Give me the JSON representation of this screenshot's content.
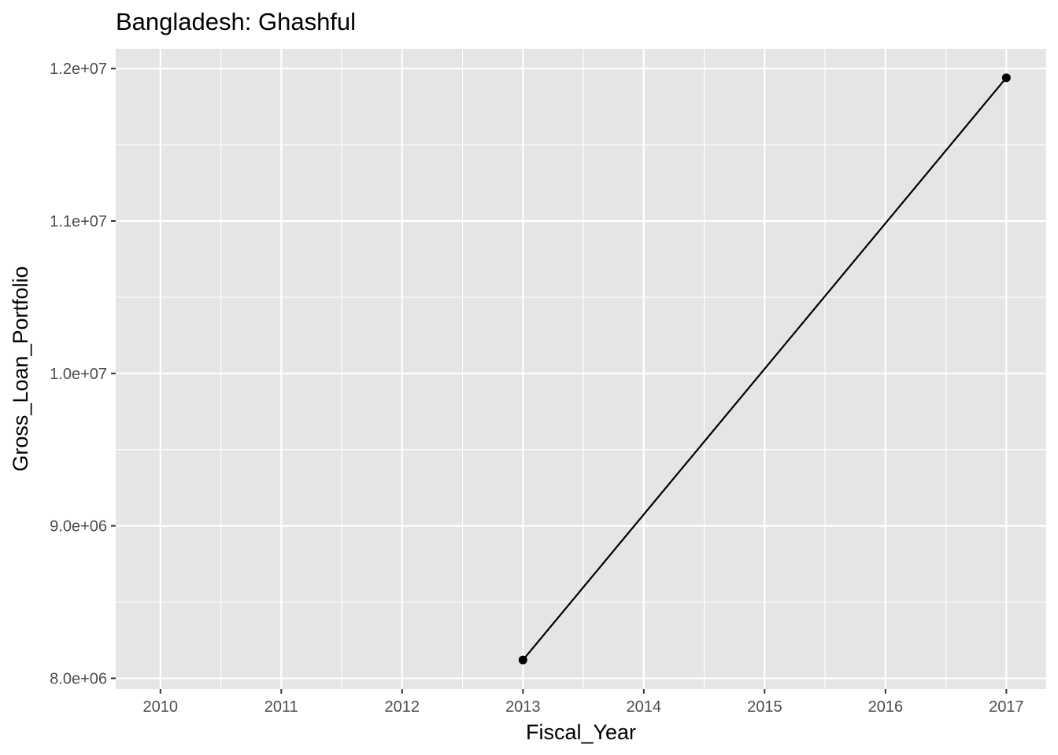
{
  "chart_data": {
    "type": "line",
    "title": "Bangladesh:  Ghashful",
    "xlabel": "Fiscal_Year",
    "ylabel": "Gross_Loan_Portfolio",
    "xlim": [
      2009.63,
      2017.33
    ],
    "ylim": [
      7930000,
      12130000
    ],
    "x_ticks": [
      2010,
      2011,
      2012,
      2013,
      2014,
      2015,
      2016,
      2017
    ],
    "x_tick_labels": [
      "2010",
      "2011",
      "2012",
      "2013",
      "2014",
      "2015",
      "2016",
      "2017"
    ],
    "y_ticks": [
      8000000,
      9000000,
      10000000,
      11000000,
      12000000
    ],
    "y_tick_labels": [
      "8.0e+06",
      "9.0e+06",
      "1.0e+07",
      "1.1e+07",
      "1.2e+07"
    ],
    "grid": true,
    "series": [
      {
        "x": [
          2013,
          2017
        ],
        "y": [
          8120000,
          11940000
        ]
      }
    ],
    "colors": {
      "panel": "#e5e5e5",
      "grid": "#ffffff",
      "line": "#000000",
      "tick_text": "#4d4d4d"
    }
  }
}
